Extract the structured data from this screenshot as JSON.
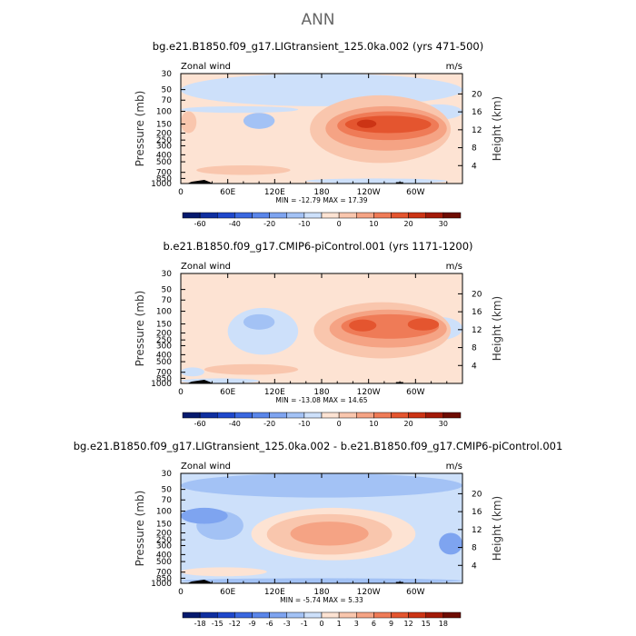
{
  "supertitle": "ANN",
  "chart_data": [
    {
      "type": "heatmap",
      "title": "bg.e21.B1850.f09_g17.LIGtransient_125.0ka.002 (yrs 471-500)",
      "left_label": "Zonal wind",
      "units": "m/s",
      "ylabel": "Pressure (mb)",
      "y2label": "Height (km)",
      "x_ticks": [
        "0",
        "60E",
        "120E",
        "180",
        "120W",
        "60W"
      ],
      "x_tick_values": [
        0,
        60,
        120,
        180,
        240,
        300
      ],
      "xlim": [
        0,
        360
      ],
      "y_ticks": [
        "30",
        "50",
        "70",
        "100",
        "150",
        "200",
        "250",
        "300",
        "400",
        "500",
        "700",
        "850",
        "1000"
      ],
      "y_tick_values": [
        30,
        50,
        70,
        100,
        150,
        200,
        250,
        300,
        400,
        500,
        700,
        850,
        1000
      ],
      "ylim": [
        30,
        1000
      ],
      "y2_ticks": [
        "20",
        "16",
        "12",
        "8",
        "4"
      ],
      "y2_tick_values": [
        20,
        16,
        12,
        8,
        4
      ],
      "minmax": "MIN = -12.79   MAX = 17.39",
      "colorbar_labels": [
        "-60",
        "-40",
        "-20",
        "-10",
        "0",
        "10",
        "20",
        "30"
      ],
      "colorbar_colors": [
        "#061a6e",
        "#0f2fa0",
        "#1f48cc",
        "#3a68e0",
        "#5a86ea",
        "#7ea4f0",
        "#a3c2f5",
        "#cde0fa",
        "#fde3d3",
        "#f9c6ad",
        "#f5a384",
        "#ef7b57",
        "#e4552f",
        "#cc3415",
        "#a31a08",
        "#6e0c02"
      ],
      "background_color": "#fde3d3",
      "regions": [
        {
          "lon": [
            0,
            360
          ],
          "p": [
            30,
            85
          ],
          "level": 7
        },
        {
          "lon": [
            0,
            150
          ],
          "p": [
            85,
            105
          ],
          "level": 7
        },
        {
          "lon": [
            80,
            120
          ],
          "p": [
            105,
            175
          ],
          "level": 6
        },
        {
          "lon": [
            300,
            360
          ],
          "p": [
            80,
            130
          ],
          "level": 7
        },
        {
          "lon": [
            160,
            340
          ],
          "p": [
            850,
            1000
          ],
          "level": 7
        },
        {
          "lon": [
            165,
            345
          ],
          "p": [
            60,
            520
          ],
          "level": 9
        },
        {
          "lon": [
            185,
            340
          ],
          "p": [
            85,
            350
          ],
          "level": 10
        },
        {
          "lon": [
            200,
            330
          ],
          "p": [
            100,
            250
          ],
          "level": 11
        },
        {
          "lon": [
            210,
            320
          ],
          "p": [
            115,
            200
          ],
          "level": 12
        },
        {
          "lon": [
            225,
            250
          ],
          "p": [
            130,
            170
          ],
          "level": 13
        },
        {
          "lon": [
            20,
            140
          ],
          "p": [
            560,
            760
          ],
          "level": 9
        },
        {
          "lon": [
            0,
            20
          ],
          "p": [
            100,
            200
          ],
          "level": 9
        }
      ]
    },
    {
      "type": "heatmap",
      "title": "b.e21.B1850.f09_g17.CMIP6-piControl.001 (yrs 1171-1200)",
      "left_label": "Zonal wind",
      "units": "m/s",
      "ylabel": "Pressure (mb)",
      "y2label": "Height (km)",
      "x_ticks": [
        "0",
        "60E",
        "120E",
        "180",
        "120W",
        "60W"
      ],
      "x_tick_values": [
        0,
        60,
        120,
        180,
        240,
        300
      ],
      "xlim": [
        0,
        360
      ],
      "y_ticks": [
        "30",
        "50",
        "70",
        "100",
        "150",
        "200",
        "250",
        "300",
        "400",
        "500",
        "700",
        "850",
        "1000"
      ],
      "y_tick_values": [
        30,
        50,
        70,
        100,
        150,
        200,
        250,
        300,
        400,
        500,
        700,
        850,
        1000
      ],
      "ylim": [
        30,
        1000
      ],
      "y2_ticks": [
        "20",
        "16",
        "12",
        "8",
        "4"
      ],
      "y2_tick_values": [
        20,
        16,
        12,
        8,
        4
      ],
      "minmax": "MIN = -13.08   MAX = 14.65",
      "colorbar_labels": [
        "-60",
        "-40",
        "-20",
        "-10",
        "0",
        "10",
        "20",
        "30"
      ],
      "colorbar_colors": [
        "#061a6e",
        "#0f2fa0",
        "#1f48cc",
        "#3a68e0",
        "#5a86ea",
        "#7ea4f0",
        "#a3c2f5",
        "#cde0fa",
        "#fde3d3",
        "#f9c6ad",
        "#f5a384",
        "#ef7b57",
        "#e4552f",
        "#cc3415",
        "#a31a08",
        "#6e0c02"
      ],
      "background_color": "#fde3d3",
      "regions": [
        {
          "lon": [
            60,
            150
          ],
          "p": [
            90,
            400
          ],
          "level": 7
        },
        {
          "lon": [
            80,
            120
          ],
          "p": [
            110,
            180
          ],
          "level": 6
        },
        {
          "lon": [
            300,
            360
          ],
          "p": [
            120,
            250
          ],
          "level": 7
        },
        {
          "lon": [
            0,
            30
          ],
          "p": [
            600,
            800
          ],
          "level": 7
        },
        {
          "lon": [
            0,
            100
          ],
          "p": [
            850,
            1000
          ],
          "level": 7
        },
        {
          "lon": [
            170,
            345
          ],
          "p": [
            75,
            450
          ],
          "level": 9
        },
        {
          "lon": [
            190,
            340
          ],
          "p": [
            95,
            320
          ],
          "level": 10
        },
        {
          "lon": [
            205,
            330
          ],
          "p": [
            110,
            240
          ],
          "level": 11
        },
        {
          "lon": [
            215,
            250
          ],
          "p": [
            130,
            190
          ],
          "level": 12
        },
        {
          "lon": [
            290,
            330
          ],
          "p": [
            125,
            185
          ],
          "level": 12
        },
        {
          "lon": [
            30,
            150
          ],
          "p": [
            540,
            760
          ],
          "level": 9
        }
      ]
    },
    {
      "type": "heatmap",
      "title": "bg.e21.B1850.f09_g17.LIGtransient_125.0ka.002 - b.e21.B1850.f09_g17.CMIP6-piControl.001",
      "left_label": "Zonal wind",
      "units": "m/s",
      "ylabel": "Pressure (mb)",
      "y2label": "Height (km)",
      "x_ticks": [
        "0",
        "60E",
        "120E",
        "180",
        "120W",
        "60W"
      ],
      "x_tick_values": [
        0,
        60,
        120,
        180,
        240,
        300
      ],
      "xlim": [
        0,
        360
      ],
      "y_ticks": [
        "30",
        "50",
        "70",
        "100",
        "150",
        "200",
        "250",
        "300",
        "400",
        "500",
        "700",
        "850",
        "1000"
      ],
      "y_tick_values": [
        30,
        50,
        70,
        100,
        150,
        200,
        250,
        300,
        400,
        500,
        700,
        850,
        1000
      ],
      "ylim": [
        30,
        1000
      ],
      "y2_ticks": [
        "20",
        "16",
        "12",
        "8",
        "4"
      ],
      "y2_tick_values": [
        20,
        16,
        12,
        8,
        4
      ],
      "minmax": "MIN = -5.74   MAX = 5.33",
      "colorbar_labels": [
        "-18",
        "-15",
        "-12",
        "-9",
        "-6",
        "-3",
        "-1",
        "0",
        "1",
        "3",
        "6",
        "9",
        "12",
        "15",
        "18"
      ],
      "colorbar_colors": [
        "#061a6e",
        "#0f2fa0",
        "#1f48cc",
        "#3a68e0",
        "#5a86ea",
        "#7ea4f0",
        "#a3c2f5",
        "#cde0fa",
        "#fde3d3",
        "#f9c6ad",
        "#f5a384",
        "#ef7b57",
        "#e4552f",
        "#cc3415",
        "#a31a08",
        "#6e0c02"
      ],
      "background_color": "#cde0fa",
      "regions": [
        {
          "lon": [
            0,
            360
          ],
          "p": [
            30,
            65
          ],
          "level": 6
        },
        {
          "lon": [
            0,
            360
          ],
          "p": [
            850,
            1000
          ],
          "level": 6
        },
        {
          "lon": [
            20,
            80
          ],
          "p": [
            100,
            250
          ],
          "level": 6
        },
        {
          "lon": [
            0,
            60
          ],
          "p": [
            90,
            150
          ],
          "level": 5
        },
        {
          "lon": [
            330,
            360
          ],
          "p": [
            200,
            400
          ],
          "level": 5
        },
        {
          "lon": [
            90,
            300
          ],
          "p": [
            90,
            480
          ],
          "level": 8
        },
        {
          "lon": [
            110,
            270
          ],
          "p": [
            110,
            400
          ],
          "level": 9
        },
        {
          "lon": [
            140,
            240
          ],
          "p": [
            140,
            300
          ],
          "level": 10
        },
        {
          "lon": [
            0,
            110
          ],
          "p": [
            600,
            800
          ],
          "level": 8
        }
      ]
    }
  ]
}
